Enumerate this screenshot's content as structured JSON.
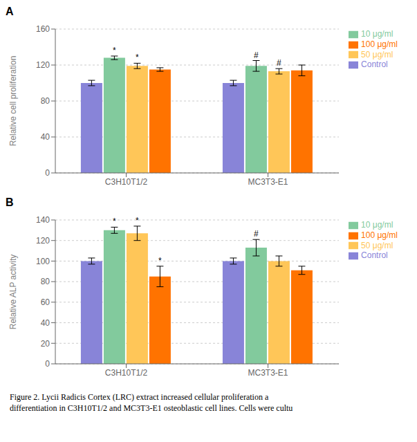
{
  "chart_data": [
    {
      "type": "bar",
      "title": "A",
      "ylabel": "Relative cell proliferation",
      "categories": [
        "C3H10T1/2",
        "MC3T3-E1"
      ],
      "series": [
        {
          "name": "Control",
          "color": "#8884d8",
          "values": [
            100,
            100
          ],
          "errors": [
            3,
            3
          ]
        },
        {
          "name": "10 μg/ml",
          "color": "#82ca9d",
          "values": [
            128,
            119
          ],
          "errors": [
            2,
            6
          ]
        },
        {
          "name": "50 μg/ml",
          "color": "#ffc658",
          "values": [
            119,
            113
          ],
          "errors": [
            3,
            3
          ]
        },
        {
          "name": "100 μg/ml",
          "color": "#ff7300",
          "values": [
            115,
            114
          ],
          "errors": [
            2,
            6
          ]
        }
      ],
      "ylim": [
        0,
        160
      ],
      "yticks": [
        0,
        40,
        80,
        120,
        160
      ],
      "grid": true,
      "legend": "right",
      "annotations": [
        {
          "category": "C3H10T1/2",
          "series": "10 μg/ml",
          "text": "*"
        },
        {
          "category": "C3H10T1/2",
          "series": "50 μg/ml",
          "text": "*"
        },
        {
          "category": "MC3T3-E1",
          "series": "10 μg/ml",
          "text": "#"
        },
        {
          "category": "MC3T3-E1",
          "series": "50 μg/ml",
          "text": "#"
        }
      ]
    },
    {
      "type": "bar",
      "title": "B",
      "ylabel": "Relative ALP activity",
      "categories": [
        "C3H10T1/2",
        "MC3T3-E1"
      ],
      "series": [
        {
          "name": "Control",
          "color": "#8884d8",
          "values": [
            100,
            100
          ],
          "errors": [
            3,
            3
          ]
        },
        {
          "name": "10 μg/ml",
          "color": "#82ca9d",
          "values": [
            130,
            113
          ],
          "errors": [
            3,
            8
          ]
        },
        {
          "name": "50 μg/ml",
          "color": "#ffc658",
          "values": [
            127,
            100
          ],
          "errors": [
            7,
            5
          ]
        },
        {
          "name": "100 μg/ml",
          "color": "#ff7300",
          "values": [
            85,
            91
          ],
          "errors": [
            10,
            4
          ]
        }
      ],
      "ylim": [
        0,
        140
      ],
      "yticks": [
        0,
        20,
        40,
        60,
        80,
        100,
        120,
        140
      ],
      "grid": true,
      "legend": "right",
      "annotations": [
        {
          "category": "C3H10T1/2",
          "series": "10 μg/ml",
          "text": "*"
        },
        {
          "category": "C3H10T1/2",
          "series": "50 μg/ml",
          "text": "*"
        },
        {
          "category": "C3H10T1/2",
          "series": "100 μg/ml",
          "text": "*"
        },
        {
          "category": "MC3T3-E1",
          "series": "10 μg/ml",
          "text": "#"
        },
        {
          "text": "Figure 2. Lycii Radicis Cortex (LRC) extract increased cellular proliferation a"
        },
        {
          "text": "differentiation in C3H10T1/2 and MC3T3-E1 osteoblastic cell lines. Cells were cultu"
        }
      ]
    }
  ]
}
